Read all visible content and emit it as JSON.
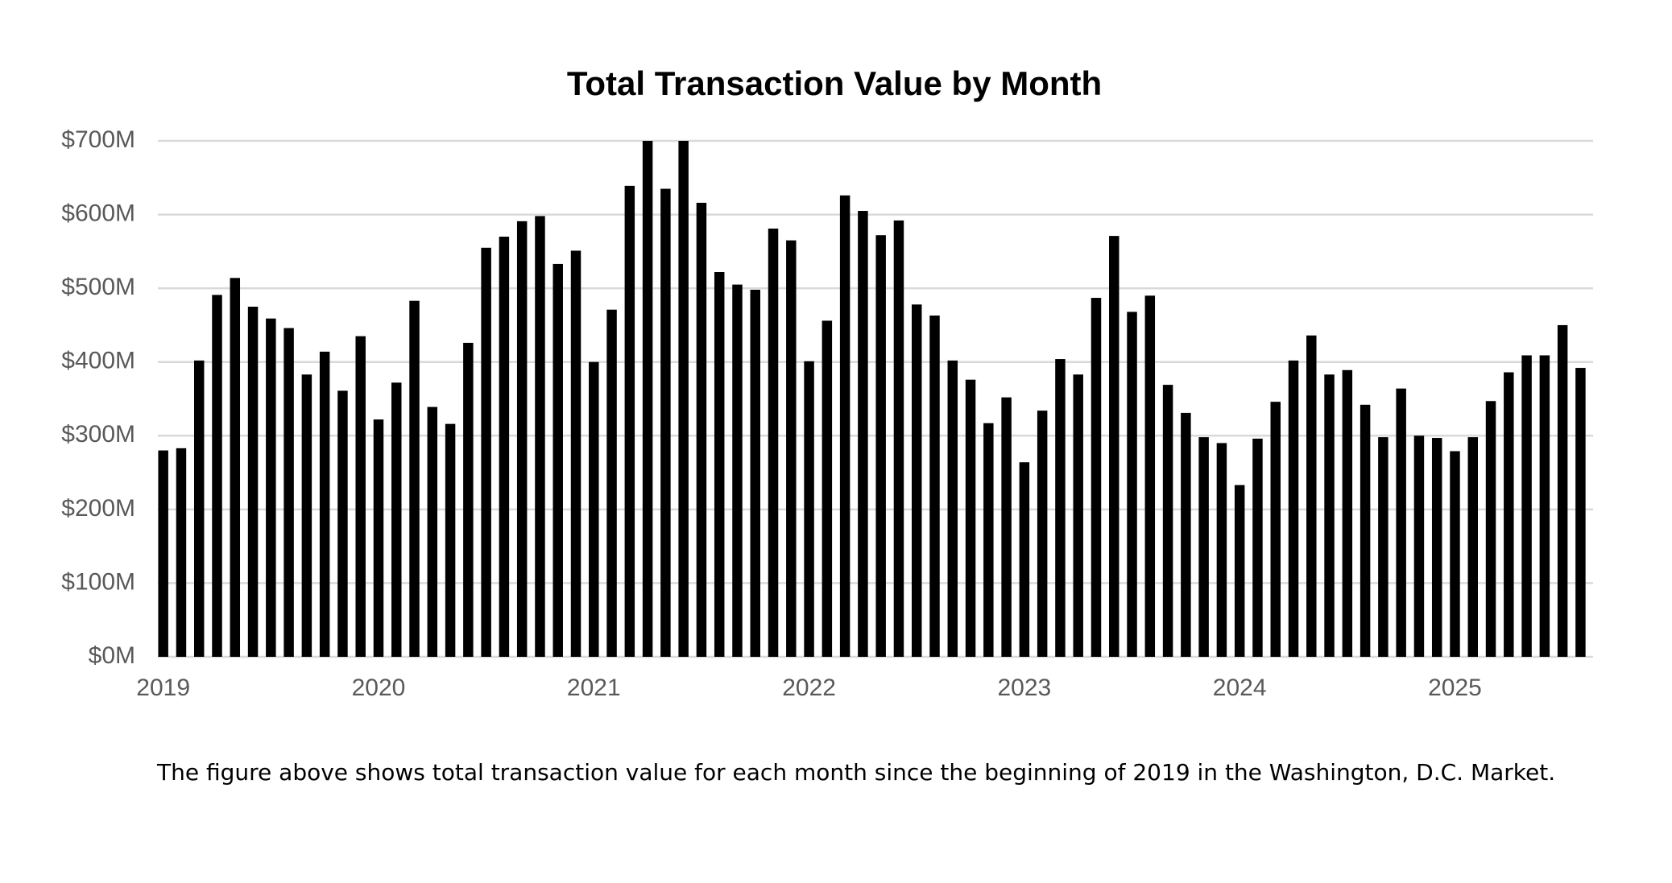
{
  "chart_data": {
    "type": "bar",
    "title": "Total Transaction Value by Month",
    "caption": "The figure above shows total transaction value for each month since the beginning of 2019 in the Washington, D.C. Market.",
    "categories": [
      "2019",
      null,
      null,
      null,
      null,
      null,
      null,
      null,
      null,
      null,
      null,
      null,
      "2020",
      null,
      null,
      null,
      null,
      null,
      null,
      null,
      null,
      null,
      null,
      null,
      "2021",
      null,
      null,
      null,
      null,
      null,
      null,
      null,
      null,
      null,
      null,
      null,
      "2022",
      null,
      null,
      null,
      null,
      null,
      null,
      null,
      null,
      null,
      null,
      null,
      "2023",
      null,
      null,
      null,
      null,
      null,
      null,
      null,
      null,
      null,
      null,
      null,
      "2024",
      null,
      null,
      null,
      null,
      null,
      null,
      null,
      null,
      null,
      null,
      null,
      "2025",
      null,
      null,
      null,
      null,
      null,
      null,
      null
    ],
    "values": [
      280,
      283,
      402,
      491,
      514,
      475,
      459,
      446,
      383,
      414,
      361,
      435,
      322,
      372,
      483,
      339,
      316,
      426,
      555,
      570,
      591,
      598,
      533,
      551,
      400,
      471,
      639,
      700,
      635,
      700,
      616,
      522,
      505,
      498,
      581,
      565,
      401,
      456,
      626,
      605,
      572,
      592,
      478,
      463,
      402,
      376,
      317,
      352,
      264,
      334,
      404,
      383,
      487,
      571,
      468,
      490,
      369,
      331,
      298,
      290,
      233,
      296,
      346,
      402,
      436,
      383,
      389,
      342,
      298,
      364,
      300,
      297,
      279,
      298,
      347,
      386,
      409,
      409,
      450,
      392
    ],
    "color": "#000000",
    "ylim": [
      0,
      700
    ],
    "yticks": [
      {
        "value": 0,
        "label": "$0M"
      },
      {
        "value": 100,
        "label": "$100M"
      },
      {
        "value": 200,
        "label": "$200M"
      },
      {
        "value": 300,
        "label": "$300M"
      },
      {
        "value": 400,
        "label": "$400M"
      },
      {
        "value": 500,
        "label": "$500M"
      },
      {
        "value": 600,
        "label": "$600M"
      },
      {
        "value": 700,
        "label": "$700M"
      }
    ],
    "grid": true
  }
}
